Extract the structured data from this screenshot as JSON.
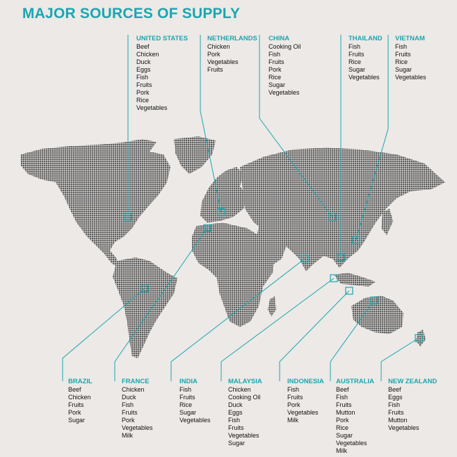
{
  "title": "MAJOR SOURCES OF SUPPLY",
  "colors": {
    "accent": "#1aa6b0",
    "land": "#666666",
    "background": "#ece9e6"
  },
  "countries": [
    {
      "name": "UNITED STATES",
      "items": [
        "Beef",
        "Chicken",
        "Duck",
        "Eggs",
        "Fish",
        "Fruits",
        "Pork",
        "Rice",
        "Vegetables"
      ]
    },
    {
      "name": "NETHERLANDS",
      "items": [
        "Chicken",
        "Pork",
        "Vegetables",
        "Fruits"
      ]
    },
    {
      "name": "CHINA",
      "items": [
        "Cooking Oil",
        "Fish",
        "Fruits",
        "Pork",
        "Rice",
        "Sugar",
        "Vegetables"
      ]
    },
    {
      "name": "THAILAND",
      "items": [
        "Fish",
        "Fruits",
        "Rice",
        "Sugar",
        "Vegetables"
      ]
    },
    {
      "name": "VIETNAM",
      "items": [
        "Fish",
        "Fruits",
        "Rice",
        "Sugar",
        "Vegetables"
      ]
    },
    {
      "name": "BRAZIL",
      "items": [
        "Beef",
        "Chicken",
        "Fruits",
        "Pork",
        "Sugar"
      ]
    },
    {
      "name": "FRANCE",
      "items": [
        "Chicken",
        "Duck",
        "Fish",
        "Fruits",
        "Pork",
        "Vegetables",
        "Milk"
      ]
    },
    {
      "name": "INDIA",
      "items": [
        "Fish",
        "Fruits",
        "Rice",
        "Sugar",
        "Vegetables"
      ]
    },
    {
      "name": "MALAYSIA",
      "items": [
        "Chicken",
        "Cooking Oil",
        "Duck",
        "Eggs",
        "Fish",
        "Fruits",
        "Vegetables",
        "Sugar"
      ]
    },
    {
      "name": "INDONESIA",
      "items": [
        "Fish",
        "Fruits",
        "Pork",
        "Vegetables",
        "Milk"
      ]
    },
    {
      "name": "AUSTRALIA",
      "items": [
        "Beef",
        "Fish",
        "Fruits",
        "Mutton",
        "Pork",
        "Rice",
        "Sugar",
        "Vegetables",
        "Milk"
      ]
    },
    {
      "name": "NEW ZEALAND",
      "items": [
        "Beef",
        "Eggs",
        "Fish",
        "Fruits",
        "Mutton",
        "Vegetables"
      ]
    }
  ]
}
